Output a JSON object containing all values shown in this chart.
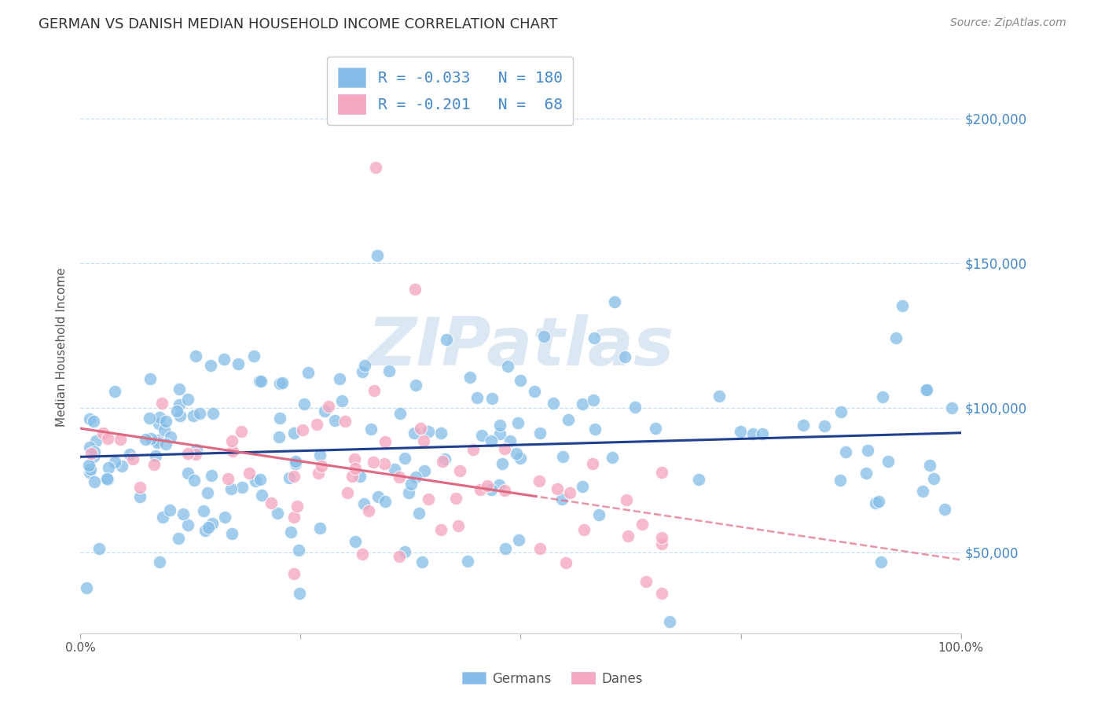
{
  "title": "GERMAN VS DANISH MEDIAN HOUSEHOLD INCOME CORRELATION CHART",
  "source": "Source: ZipAtlas.com",
  "ylabel": "Median Household Income",
  "ytick_labels": [
    "$50,000",
    "$100,000",
    "$150,000",
    "$200,000"
  ],
  "ytick_values": [
    50000,
    100000,
    150000,
    200000
  ],
  "ylim": [
    22000,
    220000
  ],
  "xlim": [
    0.0,
    1.0
  ],
  "german_R": "-0.033",
  "german_N": "180",
  "danish_R": "-0.201",
  "danish_N": "68",
  "german_color": "#85bde8",
  "danish_color": "#f5a8c0",
  "german_line_color": "#1f3f8f",
  "danish_line_color": "#e06880",
  "background_color": "#ffffff",
  "grid_color": "#c8ddf0",
  "title_color": "#333333",
  "legend_text_color": "#4488cc",
  "watermark_color": "#c5d8ee",
  "legend_label1": "Germans",
  "legend_label2": "Danes"
}
